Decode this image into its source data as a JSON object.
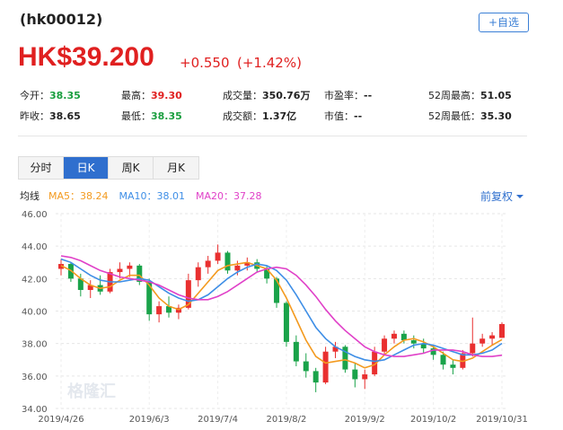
{
  "header": {
    "code": "(hk00012)",
    "button": "+自选",
    "price": "HK$39.200",
    "change": "+0.550",
    "change_pct": "(+1.42%)"
  },
  "stats": [
    [
      {
        "label": "今开：",
        "value": "38.35",
        "color": "#1a9e3f"
      },
      {
        "label": "最高：",
        "value": "39.30",
        "color": "#e02020"
      },
      {
        "label": "成交量：",
        "value": "350.76万",
        "color": "#222"
      },
      {
        "label": "市盈率：",
        "value": "--",
        "color": "#222"
      },
      {
        "label": "52周最高：",
        "value": "51.05",
        "color": "#222"
      }
    ],
    [
      {
        "label": "昨收：",
        "value": "38.65",
        "color": "#222"
      },
      {
        "label": "最低：",
        "value": "38.35",
        "color": "#1a9e3f"
      },
      {
        "label": "成交额：",
        "value": "1.37亿",
        "color": "#222"
      },
      {
        "label": "市值：",
        "value": "--",
        "color": "#222"
      },
      {
        "label": "52周最低：",
        "value": "35.30",
        "color": "#222"
      }
    ]
  ],
  "tabs": [
    "分时",
    "日K",
    "周K",
    "月K"
  ],
  "active_tab": 1,
  "controls": {
    "ma_label": "均线",
    "adjust": "前复权"
  },
  "chart_data": {
    "type": "candlestick",
    "watermark": "格隆汇",
    "x": [
      "2019/4/26",
      "2019/4/30",
      "2019/5/6",
      "2019/5/9",
      "2019/5/14",
      "2019/5/17",
      "2019/5/22",
      "2019/5/27",
      "2019/5/30",
      "2019/6/3",
      "2019/6/6",
      "2019/6/12",
      "2019/6/17",
      "2019/6/20",
      "2019/6/25",
      "2019/6/28",
      "2019/7/4",
      "2019/7/9",
      "2019/7/12",
      "2019/7/17",
      "2019/7/22",
      "2019/7/25",
      "2019/7/30",
      "2019/8/2",
      "2019/8/6",
      "2019/8/9",
      "2019/8/14",
      "2019/8/19",
      "2019/8/22",
      "2019/8/27",
      "2019/8/29",
      "2019/9/2",
      "2019/9/5",
      "2019/9/10",
      "2019/9/13",
      "2019/9/18",
      "2019/9/23",
      "2019/9/26",
      "2019/10/2",
      "2019/10/7",
      "2019/10/11",
      "2019/10/16",
      "2019/10/21",
      "2019/10/24",
      "2019/10/28",
      "2019/10/31"
    ],
    "open": [
      42.6,
      42.9,
      42.0,
      41.3,
      41.6,
      41.2,
      42.4,
      42.6,
      42.8,
      41.8,
      39.8,
      40.3,
      39.9,
      40.2,
      41.9,
      42.7,
      43.1,
      43.6,
      42.5,
      42.8,
      43.0,
      42.6,
      42.0,
      40.5,
      38.1,
      36.9,
      36.3,
      35.6,
      37.5,
      37.8,
      36.4,
      35.8,
      36.1,
      37.5,
      38.3,
      38.6,
      38.2,
      38.0,
      37.7,
      37.3,
      36.7,
      36.5,
      37.4,
      38.0,
      38.3,
      38.35
    ],
    "high": [
      43.2,
      43.0,
      42.3,
      41.9,
      42.2,
      42.6,
      43.0,
      43.0,
      42.9,
      42.0,
      40.6,
      40.9,
      40.4,
      42.3,
      43.0,
      43.4,
      44.1,
      43.7,
      43.1,
      43.3,
      43.2,
      42.8,
      42.1,
      40.6,
      38.5,
      37.4,
      36.5,
      37.8,
      38.1,
      37.9,
      36.8,
      36.4,
      37.8,
      38.5,
      38.8,
      38.8,
      38.5,
      38.3,
      37.9,
      37.5,
      37.0,
      37.6,
      39.6,
      38.6,
      38.7,
      39.3
    ],
    "low": [
      42.2,
      41.8,
      40.9,
      40.8,
      41.0,
      41.1,
      42.0,
      42.1,
      41.6,
      39.4,
      39.3,
      39.6,
      39.5,
      40.1,
      41.5,
      42.3,
      42.9,
      42.3,
      42.2,
      42.5,
      42.4,
      41.7,
      40.2,
      37.8,
      36.6,
      35.9,
      35.0,
      35.5,
      37.1,
      36.2,
      35.3,
      35.2,
      36.0,
      37.3,
      38.0,
      38.0,
      37.7,
      37.4,
      37.0,
      36.4,
      36.1,
      36.4,
      37.2,
      37.8,
      37.9,
      38.35
    ],
    "close": [
      42.9,
      42.0,
      41.3,
      41.6,
      41.2,
      42.4,
      42.6,
      42.8,
      41.8,
      39.8,
      40.3,
      39.9,
      40.2,
      41.9,
      42.7,
      43.1,
      43.6,
      42.5,
      42.8,
      43.0,
      42.6,
      42.0,
      40.5,
      38.1,
      36.9,
      36.3,
      35.6,
      37.5,
      37.8,
      36.4,
      35.8,
      36.1,
      37.5,
      38.3,
      38.6,
      38.2,
      38.0,
      37.7,
      37.3,
      36.7,
      36.5,
      37.4,
      38.0,
      38.3,
      38.5,
      39.2
    ],
    "up_color": "#e93030",
    "down_color": "#1aa34a",
    "series": [
      {
        "name": "MA5：",
        "legend_value": "38.24",
        "color": "#f39a1f",
        "values": [
          42.8,
          42.5,
          42.0,
          41.6,
          41.4,
          41.5,
          41.9,
          42.2,
          42.2,
          41.6,
          40.8,
          40.3,
          40.1,
          40.4,
          41.1,
          41.8,
          42.5,
          42.8,
          42.9,
          43.0,
          42.8,
          42.6,
          41.9,
          40.8,
          39.5,
          38.2,
          37.2,
          36.8,
          36.9,
          37.0,
          36.8,
          36.5,
          36.7,
          37.3,
          37.8,
          38.2,
          38.3,
          38.1,
          37.8,
          37.4,
          37.0,
          36.9,
          37.1,
          37.5,
          37.9,
          38.24
        ]
      },
      {
        "name": "MA10：",
        "legend_value": "38.01",
        "color": "#3e8ee6",
        "values": [
          43.2,
          43.0,
          42.6,
          42.2,
          41.9,
          41.8,
          41.8,
          41.9,
          42.0,
          41.9,
          41.5,
          41.1,
          40.8,
          40.6,
          40.7,
          41.0,
          41.5,
          42.0,
          42.4,
          42.7,
          42.9,
          42.8,
          42.5,
          41.9,
          41.0,
          40.0,
          39.0,
          38.3,
          37.8,
          37.5,
          37.2,
          37.0,
          36.9,
          37.0,
          37.3,
          37.6,
          37.9,
          38.0,
          37.9,
          37.7,
          37.5,
          37.3,
          37.3,
          37.4,
          37.6,
          38.01
        ]
      },
      {
        "name": "MA20：",
        "legend_value": "37.28",
        "color": "#e040c8",
        "values": [
          43.4,
          43.3,
          43.1,
          42.8,
          42.5,
          42.3,
          42.1,
          42.0,
          41.9,
          41.8,
          41.6,
          41.3,
          41.0,
          40.8,
          40.7,
          40.7,
          40.9,
          41.2,
          41.6,
          42.0,
          42.4,
          42.6,
          42.7,
          42.6,
          42.2,
          41.6,
          40.9,
          40.1,
          39.4,
          38.8,
          38.3,
          37.8,
          37.5,
          37.3,
          37.2,
          37.2,
          37.3,
          37.4,
          37.6,
          37.6,
          37.6,
          37.5,
          37.3,
          37.2,
          37.2,
          37.28
        ]
      }
    ],
    "ylim": [
      34,
      46
    ],
    "yticks": [
      {
        "value": 34,
        "label": "34.00"
      },
      {
        "value": 36,
        "label": "36.00"
      },
      {
        "value": 38,
        "label": "38.00"
      },
      {
        "value": 40,
        "label": "40.00"
      },
      {
        "value": 42,
        "label": "42.00"
      },
      {
        "value": 44,
        "label": "44.00"
      },
      {
        "value": 46,
        "label": "46.00"
      }
    ],
    "xticks": [
      "2019/4/26",
      "2019/6/3",
      "2019/7/4",
      "2019/8/2",
      "2019/9/2",
      "2019/10/2",
      "2019/10/31"
    ],
    "grid": true
  }
}
